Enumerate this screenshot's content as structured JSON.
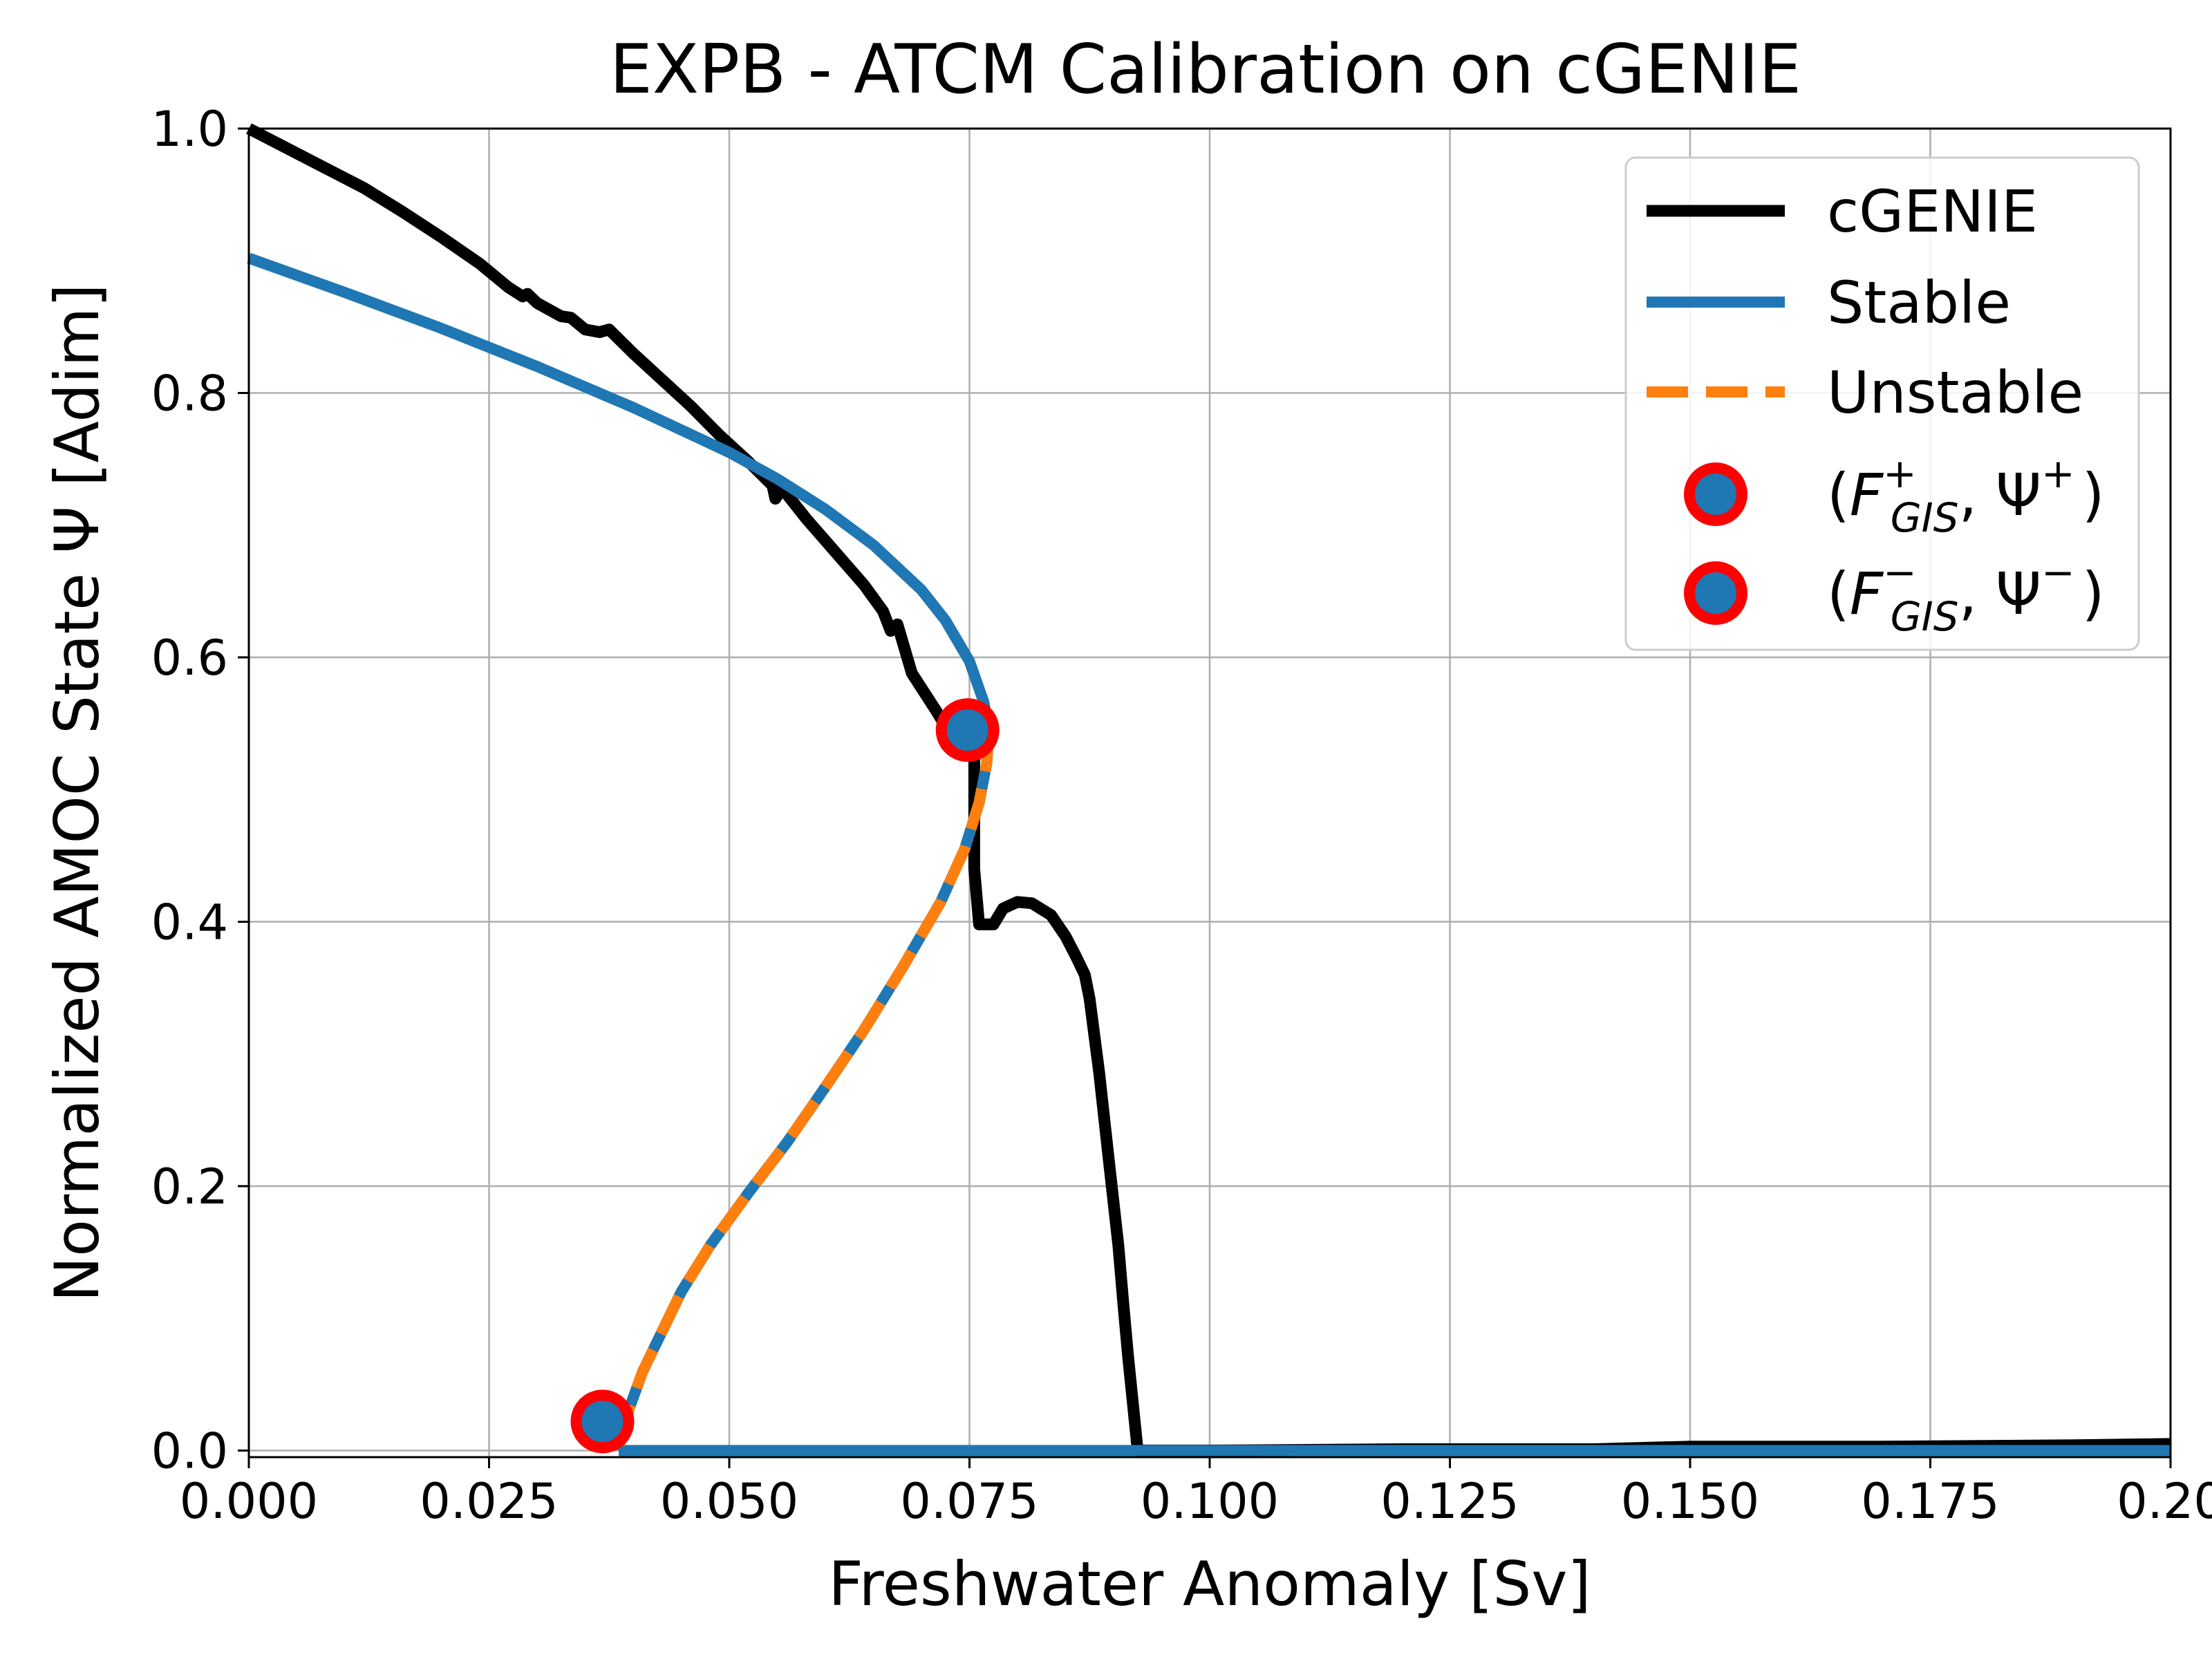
{
  "chart_data": {
    "type": "line",
    "title": "EXPB - ATCM Calibration on cGENIE",
    "xlabel": "Freshwater Anomaly [Sv]",
    "ylabel": "Normalized AMOC State Ψ [Adim]",
    "xlim": [
      0.0,
      0.2
    ],
    "ylim": [
      -0.005,
      1.0
    ],
    "x_ticks": [
      0.0,
      0.025,
      0.05,
      0.075,
      0.1,
      0.125,
      0.15,
      0.175,
      0.2
    ],
    "x_tick_labels": [
      "0.000",
      "0.025",
      "0.050",
      "0.075",
      "0.100",
      "0.125",
      "0.150",
      "0.175",
      "0.20"
    ],
    "y_ticks": [
      0.0,
      0.2,
      0.4,
      0.6,
      0.8,
      1.0
    ],
    "y_tick_labels": [
      "0.0",
      "0.2",
      "0.4",
      "0.6",
      "0.8",
      "1.0"
    ],
    "grid": true,
    "legend_position": "top-right",
    "series": [
      {
        "name": "cGENIE",
        "color": "#000000",
        "style": "solid",
        "x": [
          0.0,
          0.004,
          0.008,
          0.012,
          0.016,
          0.02,
          0.024,
          0.027,
          0.0285,
          0.029,
          0.03,
          0.0325,
          0.0335,
          0.035,
          0.0365,
          0.0375,
          0.04,
          0.043,
          0.046,
          0.049,
          0.052,
          0.0545,
          0.0548,
          0.0555,
          0.058,
          0.061,
          0.064,
          0.066,
          0.0668,
          0.0675,
          0.069,
          0.0715,
          0.0725,
          0.074,
          0.0755,
          0.0755,
          0.076,
          0.0775,
          0.0785,
          0.08,
          0.0815,
          0.0835,
          0.085,
          0.086,
          0.087,
          0.0875,
          0.0885,
          0.0895,
          0.0905,
          0.091,
          0.0915,
          0.0925,
          0.1,
          0.12,
          0.14,
          0.15,
          0.17,
          0.19,
          0.2
        ],
        "y": [
          1.0,
          0.985,
          0.97,
          0.955,
          0.937,
          0.918,
          0.898,
          0.88,
          0.873,
          0.875,
          0.868,
          0.858,
          0.857,
          0.848,
          0.846,
          0.848,
          0.83,
          0.81,
          0.79,
          0.768,
          0.748,
          0.73,
          0.72,
          0.728,
          0.705,
          0.68,
          0.655,
          0.635,
          0.62,
          0.625,
          0.588,
          0.56,
          0.548,
          0.547,
          0.542,
          0.44,
          0.398,
          0.398,
          0.41,
          0.415,
          0.414,
          0.405,
          0.389,
          0.375,
          0.36,
          0.342,
          0.286,
          0.22,
          0.155,
          0.112,
          0.072,
          0.0,
          0.0,
          0.001,
          0.001,
          0.003,
          0.003,
          0.004,
          0.005
        ]
      },
      {
        "name": "Stable",
        "color": "#1f77b4",
        "style": "solid",
        "x": [
          0.0,
          0.01,
          0.02,
          0.03,
          0.04,
          0.05,
          0.055,
          0.06,
          0.065,
          0.07,
          0.0725,
          0.075,
          0.0765,
          0.077
        ],
        "y": [
          0.902,
          0.876,
          0.849,
          0.82,
          0.789,
          0.755,
          0.735,
          0.712,
          0.685,
          0.651,
          0.628,
          0.597,
          0.566,
          0.545
        ],
        "low_branch": {
          "x": [
            0.0385,
            0.2
          ],
          "y": [
            0.0,
            0.0
          ]
        }
      },
      {
        "name": "Unstable",
        "color": "#ff7f0e",
        "style": "dashed",
        "x": [
          0.077,
          0.0768,
          0.076,
          0.0745,
          0.072,
          0.068,
          0.064,
          0.06,
          0.056,
          0.052,
          0.048,
          0.045,
          0.043,
          0.041,
          0.0395,
          0.0388,
          0.0385
        ],
        "y": [
          0.545,
          0.52,
          0.49,
          0.455,
          0.415,
          0.365,
          0.318,
          0.275,
          0.233,
          0.195,
          0.155,
          0.12,
          0.09,
          0.06,
          0.03,
          0.012,
          0.0
        ]
      },
      {
        "name": "(F_GIS^+, Ψ^+)",
        "color": "#1f77b4",
        "edge_color": "#ff0000",
        "style": "marker",
        "x": [
          0.0748
        ],
        "y": [
          0.545
        ]
      },
      {
        "name": "(F_GIS^−, Ψ^−)",
        "color": "#1f77b4",
        "edge_color": "#ff0000",
        "style": "marker",
        "x": [
          0.0368
        ],
        "y": [
          0.022
        ]
      }
    ]
  }
}
